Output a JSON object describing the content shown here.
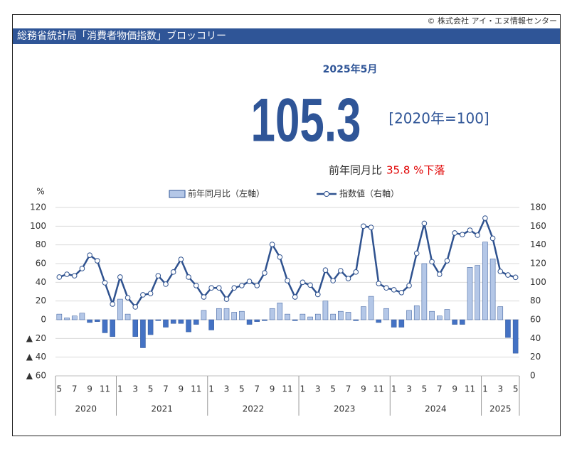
{
  "copyright": "© 株式会社 アイ・エヌ情報センター",
  "header": "総務省統計局「消費者物価指数」ブロッコリー",
  "summary": {
    "period": "2025年5月",
    "index": 105.3,
    "base": "[2020年=100]",
    "yoy_label": "前年同月比",
    "yoy_text": "35.8 %下落"
  },
  "chart_data": {
    "type": "bar_line",
    "y_unit": "%",
    "categories": [
      "5",
      null,
      "7",
      null,
      "9",
      null,
      "11",
      null,
      "1",
      null,
      "3",
      null,
      "5",
      null,
      "7",
      null,
      "9",
      null,
      "11",
      null,
      "1",
      null,
      "3",
      null,
      "5",
      null,
      "7",
      null,
      "9",
      null,
      "11",
      null,
      "1",
      null,
      "3",
      null,
      "5",
      null,
      "7",
      null,
      "9",
      null,
      "11",
      null,
      "1",
      null,
      "3",
      null,
      "5",
      null,
      "7",
      null,
      "9",
      null,
      "11",
      null,
      "1",
      null,
      "3",
      null,
      "5"
    ],
    "year_groups": [
      "2020",
      "2021",
      "2022",
      "2023",
      "2024",
      "2025"
    ],
    "series": [
      {
        "name": "前年同月比（左軸）",
        "type": "bar",
        "color": "#b4c7e7",
        "negative_color": "#4472c4",
        "stroke": "#2f5597",
        "values": [
          6,
          2,
          4,
          7,
          -3,
          -2,
          -14,
          -18,
          22,
          6,
          -18,
          -30,
          -16,
          -1,
          -8,
          -4,
          -4,
          -13,
          -5,
          10,
          -11,
          12,
          12,
          8,
          9,
          -5,
          -2,
          -1,
          12,
          18,
          6,
          -1,
          6,
          3,
          6,
          20,
          6,
          9,
          8,
          -1,
          14,
          25,
          -3,
          12,
          -8,
          -8,
          10,
          15,
          60,
          9,
          4,
          11,
          -5,
          -5,
          56,
          58,
          83,
          65,
          14,
          -19,
          -35.8
        ]
      },
      {
        "name": "指数値（右軸）",
        "type": "line",
        "axis": "y2",
        "color": "#2f528f",
        "values": [
          105.6,
          108.6,
          107,
          114.7,
          129,
          123,
          99.5,
          76.7,
          105.6,
          83.5,
          73.7,
          86.6,
          88,
          107,
          98,
          111,
          124.5,
          105.6,
          96.5,
          84.3,
          94,
          94,
          82,
          94,
          96.5,
          101,
          96.5,
          110,
          140.5,
          127,
          101.8,
          84.3,
          100,
          97,
          87,
          113,
          101.8,
          112.4,
          104,
          111,
          160,
          158.7,
          98.7,
          94,
          92,
          89,
          96.5,
          131,
          163,
          122,
          108.6,
          123,
          152.7,
          151,
          155.7,
          150.4,
          168.6,
          147,
          111.6,
          107.8,
          105.3
        ]
      }
    ],
    "ylim": [
      -60,
      120
    ],
    "yticks": [
      {
        "value": -60,
        "label": "▲ 60"
      },
      {
        "value": -40,
        "label": "▲ 40"
      },
      {
        "value": -20,
        "label": "▲ 20"
      },
      0,
      20,
      40,
      60,
      80,
      100,
      120
    ],
    "y2lim": [
      0,
      180
    ],
    "y2ticks": [
      0,
      20,
      40,
      60,
      80,
      100,
      120,
      140,
      160,
      180
    ],
    "grid": true
  }
}
